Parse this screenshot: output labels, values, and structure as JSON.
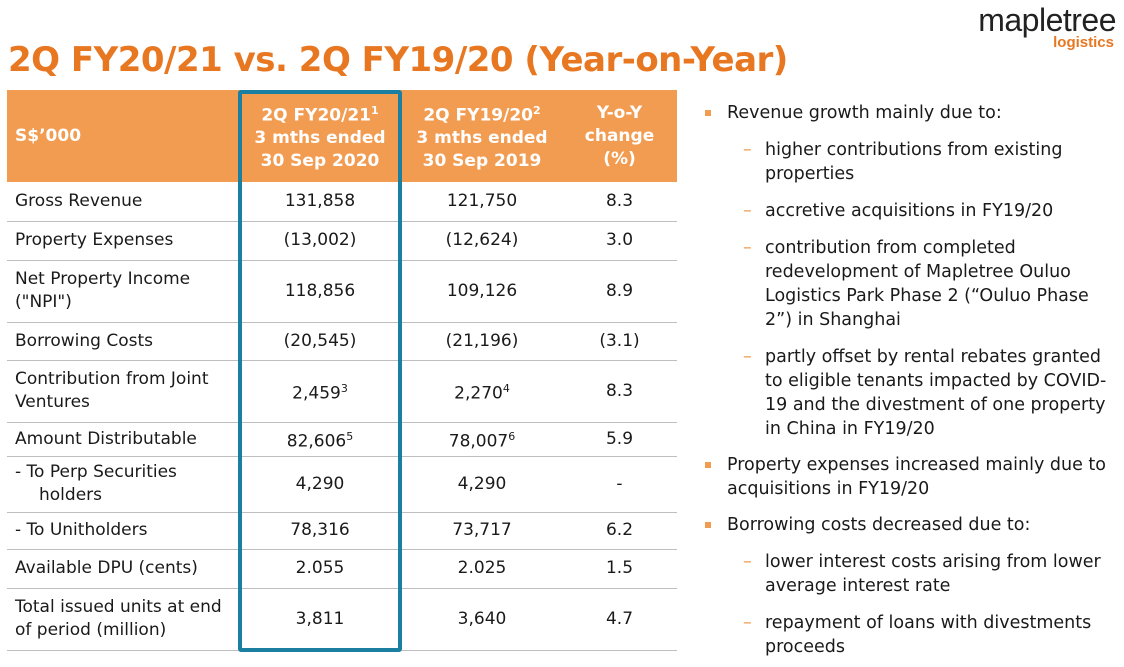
{
  "logo": {
    "main": "mapletree",
    "sub": "logistics"
  },
  "title": "2Q FY20/21 vs. 2Q FY19/20 (Year-on-Year)",
  "table": {
    "header": {
      "label": "S$’000",
      "col1": {
        "line1": "2Q FY20/21",
        "sup": "1",
        "line2": "3 mths ended",
        "line3": "30 Sep 2020"
      },
      "col2": {
        "line1": "2Q FY19/20",
        "sup": "2",
        "line2": "3 mths ended",
        "line3": "30 Sep 2019"
      },
      "col3": {
        "line1": "Y-o-Y",
        "line2": "change",
        "line3": "(%)"
      }
    },
    "rows": [
      {
        "label1": "Gross Revenue",
        "label2": "",
        "v1": "131,858",
        "v1sup": "",
        "v2": "121,750",
        "v2sup": "",
        "v3": "8.3"
      },
      {
        "label1": "Property Expenses",
        "label2": "",
        "v1": "(13,002)",
        "v1sup": "",
        "v2": "(12,624)",
        "v2sup": "",
        "v3": "3.0"
      },
      {
        "label1": "Net Property Income",
        "label2": "(\"NPI\")",
        "v1": "118,856",
        "v1sup": "",
        "v2": "109,126",
        "v2sup": "",
        "v3": "8.9"
      },
      {
        "label1": "Borrowing Costs",
        "label2": "",
        "v1": "(20,545)",
        "v1sup": "",
        "v2": "(21,196)",
        "v2sup": "",
        "v3": "(3.1)"
      },
      {
        "label1": "Contribution from Joint",
        "label2": "Ventures",
        "v1": "2,459",
        "v1sup": "3",
        "v2": "2,270",
        "v2sup": "4",
        "v3": "8.3"
      },
      {
        "label1": "Amount Distributable",
        "label2": "",
        "v1": "82,606",
        "v1sup": "5",
        "v2": "78,007",
        "v2sup": "6",
        "v3": "5.9"
      },
      {
        "label1": "- To Perp Securities",
        "label2": "holders",
        "v1": "4,290",
        "v1sup": "",
        "v2": "4,290",
        "v2sup": "",
        "v3": "-"
      },
      {
        "label1": "- To Unitholders",
        "label2": "",
        "v1": "78,316",
        "v1sup": "",
        "v2": "73,717",
        "v2sup": "",
        "v3": "6.2"
      },
      {
        "label1": "Available DPU (cents)",
        "label2": "",
        "v1": "2.055",
        "v1sup": "",
        "v2": "2.025",
        "v2sup": "",
        "v3": "1.5"
      },
      {
        "label1": "Total issued units at end",
        "label2": "of period (million)",
        "v1": "3,811",
        "v1sup": "",
        "v2": "3,640",
        "v2sup": "",
        "v3": "4.7"
      }
    ]
  },
  "notes": {
    "b1": {
      "text": "Revenue growth mainly due to:",
      "subs": [
        "higher contributions from existing properties",
        "accretive acquisitions in FY19/20",
        "contribution from completed redevelopment of Mapletree Ouluo Logistics Park Phase 2 (“Ouluo Phase 2”) in Shanghai",
        "partly offset by rental rebates granted to eligible tenants impacted by COVID-19 and the divestment of one property in China in FY19/20"
      ]
    },
    "b2": {
      "text": "Property expenses increased mainly due to acquisitions in FY19/20"
    },
    "b3": {
      "text": "Borrowing costs decreased due to:",
      "subs": [
        "lower interest costs arising from lower average interest rate",
        "repayment of loans with divestments proceeds"
      ]
    }
  },
  "colors": {
    "accent": "#e87722",
    "header_bg": "#f29c52",
    "highlight": "#1a7fa0"
  }
}
